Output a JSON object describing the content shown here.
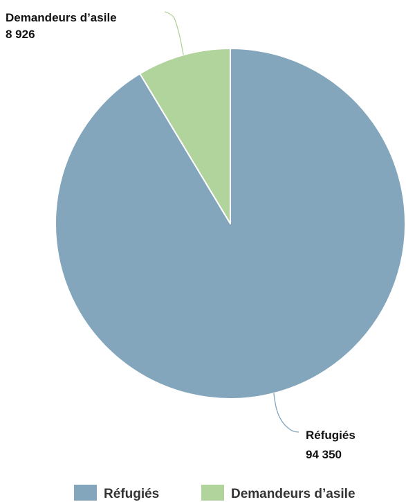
{
  "chart_data": {
    "type": "pie",
    "title": "",
    "slices": [
      {
        "name": "Réfugiés",
        "value": 94350,
        "value_label": "94 350",
        "color": "#84a6bd"
      },
      {
        "name": "Demandeurs d’asile",
        "value": 8926,
        "value_label": "8 926",
        "color": "#b1d39c"
      }
    ],
    "start_angle": "12 o'clock",
    "direction": "clockwise",
    "legend": {
      "position": "bottom-right",
      "items": [
        "Réfugiés",
        "Demandeurs d’asile"
      ]
    }
  }
}
